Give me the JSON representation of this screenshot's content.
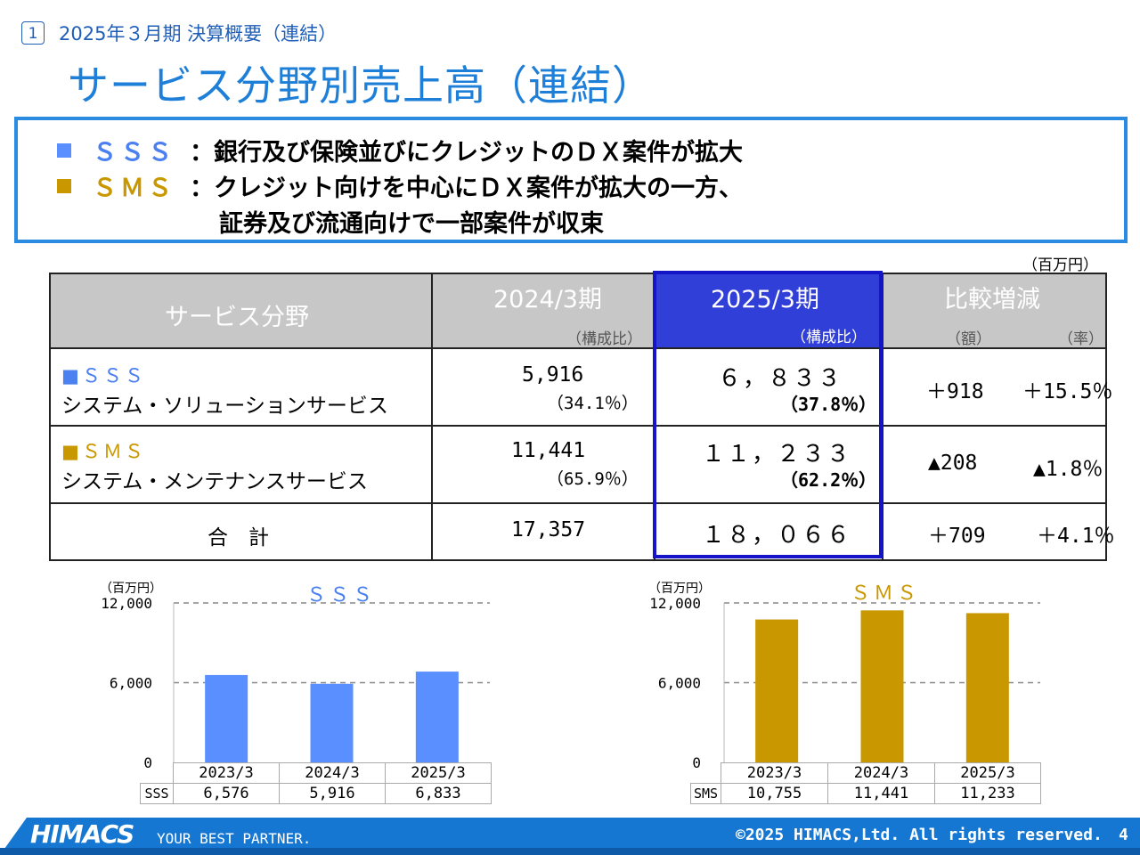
{
  "header": {
    "section_number": "1",
    "section_title": "2025年３月期 決算概要（連結）",
    "page_title": "サービス分野別売上高（連結）"
  },
  "summary": {
    "sss": {
      "label": "ＳＳＳ",
      "text": "：銀行及び保険並びにクレジットのＤＸ案件が拡大"
    },
    "sms": {
      "label": "ＳＭＳ",
      "text1": "：クレジット向けを中心にＤＸ案件が拡大の一方、",
      "text2": "証券及び流通向けで一部案件が収束"
    }
  },
  "table": {
    "unit": "（百万円）",
    "headers": {
      "field": "サービス分野",
      "prev": "2024/3期",
      "prev_sub": "（構成比）",
      "curr": "2025/3期",
      "curr_sub": "（構成比）",
      "diff": "比較増減",
      "diff_amount": "（額）",
      "diff_rate": "（率）"
    },
    "rows": [
      {
        "square": "■",
        "code": "ＳＳＳ",
        "name": "システム・ソリューションサービス",
        "prev": "5,916",
        "prev_ratio": "（34.1％）",
        "curr": "６，８３３",
        "curr_ratio": "（37.8％）",
        "diff_amount": "＋918",
        "diff_rate": "＋15.5％"
      },
      {
        "square": "■",
        "code": "ＳＭＳ",
        "name": "システム・メンテナンスサービス",
        "prev": "11,441",
        "prev_ratio": "（65.9％）",
        "curr": "１１，２３３",
        "curr_ratio": "（62.2％）",
        "diff_amount": "▲208",
        "diff_rate": "▲1.8％"
      },
      {
        "name": "合　計",
        "prev": "17,357",
        "curr": "１８，０６６",
        "diff_amount": "＋709",
        "diff_rate": "＋4.1％"
      }
    ]
  },
  "colors": {
    "sss": "#5a8fff",
    "sms": "#c99700",
    "title": "#1e7fd9",
    "highlight": "#1515c8",
    "footer": "#1677d2"
  },
  "chart_data": [
    {
      "type": "bar",
      "title": "ＳＳＳ",
      "unit": "（百万円）",
      "categories": [
        "2023/3",
        "2024/3",
        "2025/3"
      ],
      "series": [
        {
          "name": "SSS",
          "values": [
            6576,
            5916,
            6833
          ]
        }
      ],
      "value_labels": [
        "6,576",
        "5,916",
        "6,833"
      ],
      "ylim": [
        0,
        12000
      ],
      "yticks": [
        "12,000",
        "6,000",
        "0"
      ],
      "grid": "dashed"
    },
    {
      "type": "bar",
      "title": "ＳＭＳ",
      "unit": "（百万円）",
      "categories": [
        "2023/3",
        "2024/3",
        "2025/3"
      ],
      "series": [
        {
          "name": "SMS",
          "values": [
            10755,
            11441,
            11233
          ]
        }
      ],
      "value_labels": [
        "10,755",
        "11,441",
        "11,233"
      ],
      "ylim": [
        0,
        12000
      ],
      "yticks": [
        "12,000",
        "6,000",
        "0"
      ],
      "grid": "dashed"
    }
  ],
  "footer": {
    "logo": "HIMACS",
    "tagline": "YOUR BEST PARTNER.",
    "copyright": "©2025 HIMACS,Ltd. All rights reserved.",
    "page_number": "4"
  }
}
